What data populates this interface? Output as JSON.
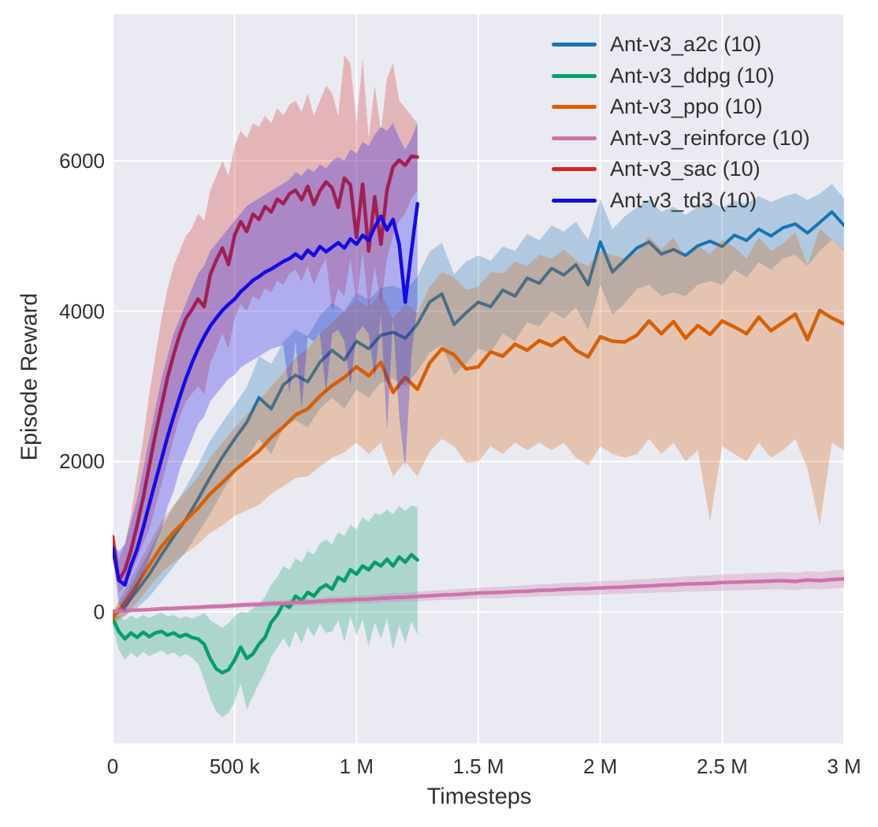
{
  "chart_data": {
    "type": "line",
    "title": "",
    "xlabel": "Timesteps",
    "ylabel": "Episode Reward",
    "xlim": [
      0,
      3000000
    ],
    "ylim": [
      -1750,
      7950
    ],
    "grid": true,
    "plot_background": "#eaeaf2",
    "grid_color": "#ffffff",
    "text_color": "#303030",
    "band_alpha": 0.27,
    "legend_position": "top-right",
    "x_ticks": [
      {
        "value": 0,
        "label": "0"
      },
      {
        "value": 500000,
        "label": "500 k"
      },
      {
        "value": 1000000,
        "label": "1 M"
      },
      {
        "value": 1500000,
        "label": "1.5 M"
      },
      {
        "value": 2000000,
        "label": "2 M"
      },
      {
        "value": 2500000,
        "label": "2.5 M"
      },
      {
        "value": 3000000,
        "label": "3 M"
      }
    ],
    "y_ticks": [
      {
        "value": 0,
        "label": "0"
      },
      {
        "value": 2000,
        "label": "2000"
      },
      {
        "value": 4000,
        "label": "4000"
      },
      {
        "value": 6000,
        "label": "6000"
      }
    ],
    "series": [
      {
        "name": "Ant-v3_a2c (10)",
        "color": "#1874b2",
        "line_width": 4,
        "x_start": 0,
        "x_step": 50000,
        "values": [
          -60,
          80,
          280,
          500,
          760,
          1000,
          1230,
          1500,
          1790,
          2060,
          2300,
          2520,
          2850,
          2700,
          3020,
          3150,
          3060,
          3320,
          3480,
          3350,
          3600,
          3500,
          3680,
          3720,
          3640,
          3830,
          4120,
          4230,
          3820,
          3980,
          4120,
          4060,
          4280,
          4200,
          4440,
          4370,
          4570,
          4480,
          4620,
          4350,
          4920,
          4520,
          4680,
          4840,
          4920,
          4760,
          4820,
          4740,
          4870,
          4930,
          4860,
          5010,
          4940,
          5090,
          5000,
          5110,
          5160,
          5040,
          5180,
          5320,
          5140
        ],
        "lo": [
          -120,
          -50,
          50,
          200,
          400,
          600,
          800,
          1050,
          1300,
          1600,
          1850,
          2050,
          2300,
          2100,
          2450,
          2550,
          2450,
          2700,
          2850,
          2700,
          2950,
          2850,
          3050,
          3100,
          3000,
          3200,
          3450,
          3550,
          3150,
          3300,
          3500,
          3450,
          3700,
          3600,
          3850,
          3800,
          4000,
          3900,
          4050,
          3750,
          4350,
          3950,
          4100,
          4300,
          4350,
          4200,
          4250,
          4200,
          4350,
          4400,
          4350,
          4550,
          4450,
          4650,
          4550,
          4700,
          4750,
          4600,
          4800,
          4950,
          4800
        ],
        "hi": [
          0,
          210,
          510,
          800,
          1120,
          1400,
          1660,
          1950,
          2280,
          2520,
          2750,
          2990,
          3400,
          3300,
          3590,
          3750,
          3670,
          3940,
          4110,
          4000,
          4250,
          4150,
          4310,
          4340,
          4280,
          4460,
          4790,
          4910,
          4490,
          4660,
          4740,
          4670,
          4860,
          4800,
          5030,
          4940,
          5140,
          5060,
          5190,
          4950,
          5490,
          5090,
          5260,
          5380,
          5490,
          5320,
          5390,
          5280,
          5390,
          5460,
          5370,
          5470,
          5430,
          5530,
          5450,
          5520,
          5570,
          5480,
          5560,
          5690,
          5500
        ]
      },
      {
        "name": "Ant-v3_ddpg (10)",
        "color": "#079e6e",
        "line_width": 4.5,
        "x_start": 0,
        "x_step": 25000,
        "values": [
          -90,
          -260,
          -360,
          -280,
          -340,
          -270,
          -330,
          -280,
          -260,
          -310,
          -280,
          -330,
          -300,
          -340,
          -360,
          -430,
          -620,
          -760,
          -810,
          -770,
          -640,
          -470,
          -620,
          -560,
          -430,
          -340,
          -140,
          -40,
          110,
          60,
          210,
          150,
          260,
          210,
          310,
          360,
          300,
          460,
          410,
          560,
          500,
          610,
          560,
          660,
          610,
          700,
          610,
          730,
          660,
          760,
          690
        ],
        "lo": [
          -200,
          -500,
          -640,
          -540,
          -610,
          -530,
          -590,
          -550,
          -510,
          -570,
          -540,
          -600,
          -560,
          -610,
          -690,
          -900,
          -1150,
          -1330,
          -1400,
          -1340,
          -1200,
          -950,
          -1300,
          -1120,
          -950,
          -800,
          -600,
          -480,
          -350,
          -480,
          -250,
          -420,
          -200,
          -330,
          -160,
          -280,
          -260,
          -110,
          -400,
          -60,
          -310,
          -100,
          -460,
          -140,
          -360,
          -90,
          -500,
          -180,
          -410,
          -130,
          -300
        ],
        "hi": [
          0,
          -60,
          -110,
          -50,
          -90,
          -40,
          -80,
          -40,
          -10,
          -60,
          -40,
          -90,
          -60,
          -90,
          -60,
          -10,
          -110,
          -160,
          -210,
          -150,
          -60,
          0,
          -10,
          40,
          100,
          200,
          360,
          460,
          610,
          560,
          710,
          660,
          810,
          760,
          910,
          960,
          900,
          1060,
          1010,
          1160,
          1100,
          1260,
          1200,
          1310,
          1290,
          1360,
          1300,
          1410,
          1340,
          1420,
          1390
        ]
      },
      {
        "name": "Ant-v3_ppo (10)",
        "color": "#d85f04",
        "line_width": 4.5,
        "x_start": 0,
        "x_step": 50000,
        "values": [
          -80,
          120,
          360,
          620,
          870,
          1060,
          1220,
          1380,
          1570,
          1720,
          1880,
          2010,
          2140,
          2320,
          2460,
          2620,
          2700,
          2870,
          3010,
          3120,
          3260,
          3140,
          3320,
          2920,
          3120,
          2960,
          3310,
          3500,
          3420,
          3230,
          3260,
          3460,
          3400,
          3560,
          3480,
          3610,
          3540,
          3650,
          3480,
          3390,
          3660,
          3600,
          3590,
          3680,
          3870,
          3700,
          3860,
          3640,
          3810,
          3690,
          3870,
          3790,
          3700,
          3920,
          3740,
          3850,
          3960,
          3620,
          4010,
          3910,
          3830
        ],
        "lo": [
          -160,
          -60,
          120,
          330,
          520,
          660,
          780,
          900,
          1050,
          1150,
          1280,
          1350,
          1420,
          1570,
          1670,
          1780,
          1800,
          1930,
          2050,
          2120,
          2250,
          2100,
          2250,
          1800,
          2000,
          1800,
          2130,
          2300,
          2200,
          1980,
          2000,
          2200,
          2100,
          2250,
          2150,
          2250,
          2150,
          2250,
          2050,
          1950,
          2200,
          2100,
          2050,
          2100,
          2300,
          2100,
          2250,
          2000,
          2150,
          1200,
          2200,
          2100,
          2000,
          2250,
          2050,
          2150,
          2300,
          1900,
          1150,
          2250,
          2150
        ],
        "hi": [
          0,
          300,
          600,
          910,
          1200,
          1420,
          1600,
          1800,
          2050,
          2250,
          2450,
          2620,
          2800,
          3000,
          3180,
          3380,
          3500,
          3700,
          3850,
          4000,
          4150,
          4050,
          4250,
          3900,
          4100,
          3980,
          4320,
          4520,
          4450,
          4280,
          4330,
          4520,
          4500,
          4660,
          4600,
          4750,
          4700,
          4820,
          4680,
          4600,
          4800,
          4750,
          4700,
          4780,
          5000,
          4820,
          4980,
          4700,
          4870,
          4760,
          4950,
          4850,
          4700,
          4980,
          4800,
          4900,
          5050,
          4600,
          5100,
          4950,
          4820
        ]
      },
      {
        "name": "Ant-v3_reinforce (10)",
        "color": "#cd73aa",
        "line_width": 4.5,
        "x_start": 0,
        "x_step": 50000,
        "values": [
          10,
          15,
          25,
          30,
          40,
          45,
          55,
          60,
          70,
          75,
          85,
          95,
          100,
          110,
          115,
          125,
          130,
          140,
          150,
          155,
          165,
          170,
          180,
          190,
          195,
          205,
          215,
          225,
          230,
          240,
          250,
          255,
          260,
          270,
          275,
          285,
          290,
          300,
          305,
          310,
          320,
          325,
          330,
          340,
          345,
          355,
          360,
          370,
          375,
          380,
          390,
          395,
          400,
          405,
          410,
          415,
          405,
          425,
          415,
          430,
          440
        ],
        "lo": [
          0,
          -10,
          0,
          5,
          10,
          15,
          25,
          30,
          35,
          40,
          50,
          60,
          60,
          70,
          75,
          80,
          85,
          95,
          100,
          105,
          110,
          115,
          125,
          130,
          135,
          140,
          150,
          160,
          160,
          170,
          180,
          180,
          185,
          195,
          195,
          205,
          210,
          215,
          220,
          225,
          230,
          235,
          240,
          245,
          250,
          260,
          260,
          270,
          270,
          275,
          280,
          285,
          290,
          295,
          300,
          300,
          290,
          310,
          300,
          310,
          320
        ],
        "hi": [
          20,
          40,
          50,
          55,
          70,
          75,
          85,
          90,
          105,
          110,
          120,
          130,
          140,
          150,
          155,
          170,
          175,
          185,
          200,
          205,
          220,
          225,
          235,
          250,
          255,
          270,
          280,
          290,
          300,
          310,
          320,
          330,
          335,
          345,
          355,
          365,
          370,
          385,
          390,
          395,
          410,
          415,
          420,
          435,
          440,
          450,
          460,
          470,
          480,
          485,
          500,
          505,
          510,
          515,
          520,
          530,
          520,
          540,
          530,
          550,
          560
        ]
      },
      {
        "name": "Ant-v3_sac (10)",
        "color": "#d6271e",
        "line_width": 4.5,
        "x_start": 0,
        "x_step": 25000,
        "values": [
          1000,
          420,
          560,
          820,
          1150,
          1520,
          1940,
          2360,
          2740,
          3120,
          3420,
          3690,
          3900,
          4020,
          4160,
          4060,
          4480,
          4680,
          4840,
          4620,
          5010,
          5190,
          5060,
          5290,
          5220,
          5390,
          5320,
          5490,
          5430,
          5560,
          5610,
          5480,
          5660,
          5420,
          5600,
          5720,
          5640,
          5380,
          5770,
          5680,
          4980,
          5690,
          4800,
          5520,
          4890,
          5610,
          5920,
          6010,
          5940,
          6060,
          6050
        ],
        "lo": [
          950,
          250,
          350,
          500,
          700,
          900,
          1100,
          1400,
          1700,
          2000,
          2300,
          2600,
          2800,
          2900,
          3000,
          2900,
          3300,
          3500,
          3700,
          3500,
          3900,
          4100,
          4000,
          4200,
          4150,
          4300,
          4250,
          4400,
          4350,
          4500,
          4550,
          4400,
          4600,
          4350,
          4550,
          4700,
          4000,
          4300,
          4200,
          4700,
          4100,
          4800,
          4000,
          4600,
          4100,
          4700,
          5000,
          5200,
          5300,
          5500,
          5600
        ],
        "hi": [
          1050,
          700,
          900,
          1300,
          1800,
          2300,
          2900,
          3400,
          3900,
          4300,
          4600,
          4800,
          5000,
          5100,
          5300,
          5200,
          5600,
          5800,
          6000,
          5800,
          6200,
          6400,
          6300,
          6500,
          6450,
          6600,
          6500,
          6700,
          6600,
          6750,
          6800,
          6650,
          6900,
          6600,
          6800,
          7000,
          6900,
          6600,
          7400,
          7300,
          6500,
          7350,
          6300,
          7000,
          6400,
          7100,
          7300,
          6800,
          6700,
          6600,
          6500
        ]
      },
      {
        "name": "Ant-v3_td3 (10)",
        "color": "#140ae8",
        "line_width": 4.5,
        "x_start": 0,
        "x_step": 25000,
        "values": [
          850,
          420,
          360,
          620,
          830,
          1120,
          1430,
          1730,
          2030,
          2330,
          2600,
          2860,
          3100,
          3310,
          3500,
          3660,
          3800,
          3910,
          4010,
          4090,
          4160,
          4260,
          4330,
          4410,
          4460,
          4520,
          4560,
          4610,
          4660,
          4700,
          4760,
          4700,
          4810,
          4740,
          4860,
          4790,
          4850,
          4910,
          4840,
          4960,
          4890,
          5010,
          4940,
          5120,
          5260,
          5080,
          5220,
          4890,
          4120,
          4790,
          5430
        ],
        "lo": [
          800,
          100,
          0,
          150,
          300,
          500,
          700,
          900,
          1100,
          1400,
          1600,
          1900,
          2100,
          2300,
          2500,
          2600,
          2800,
          2900,
          3000,
          3100,
          3150,
          3250,
          3300,
          3350,
          3400,
          3450,
          3500,
          3520,
          3550,
          2900,
          3600,
          2700,
          3650,
          3600,
          3700,
          2900,
          3700,
          3750,
          3600,
          3000,
          3700,
          3800,
          3700,
          3100,
          3950,
          2400,
          3900,
          2600,
          1900,
          3400,
          4100
        ],
        "hi": [
          900,
          800,
          900,
          1200,
          1500,
          1900,
          2300,
          2700,
          3100,
          3400,
          3700,
          3900,
          4100,
          4300,
          4500,
          4600,
          4800,
          4900,
          5000,
          5100,
          5200,
          5300,
          5400,
          5450,
          5500,
          5550,
          5600,
          5650,
          5700,
          5750,
          5850,
          5800,
          5900,
          5850,
          5950,
          5900,
          6000,
          6050,
          6000,
          6150,
          6100,
          6250,
          6200,
          6350,
          6450,
          6400,
          6500,
          6300,
          6150,
          6300,
          6500
        ]
      }
    ]
  }
}
